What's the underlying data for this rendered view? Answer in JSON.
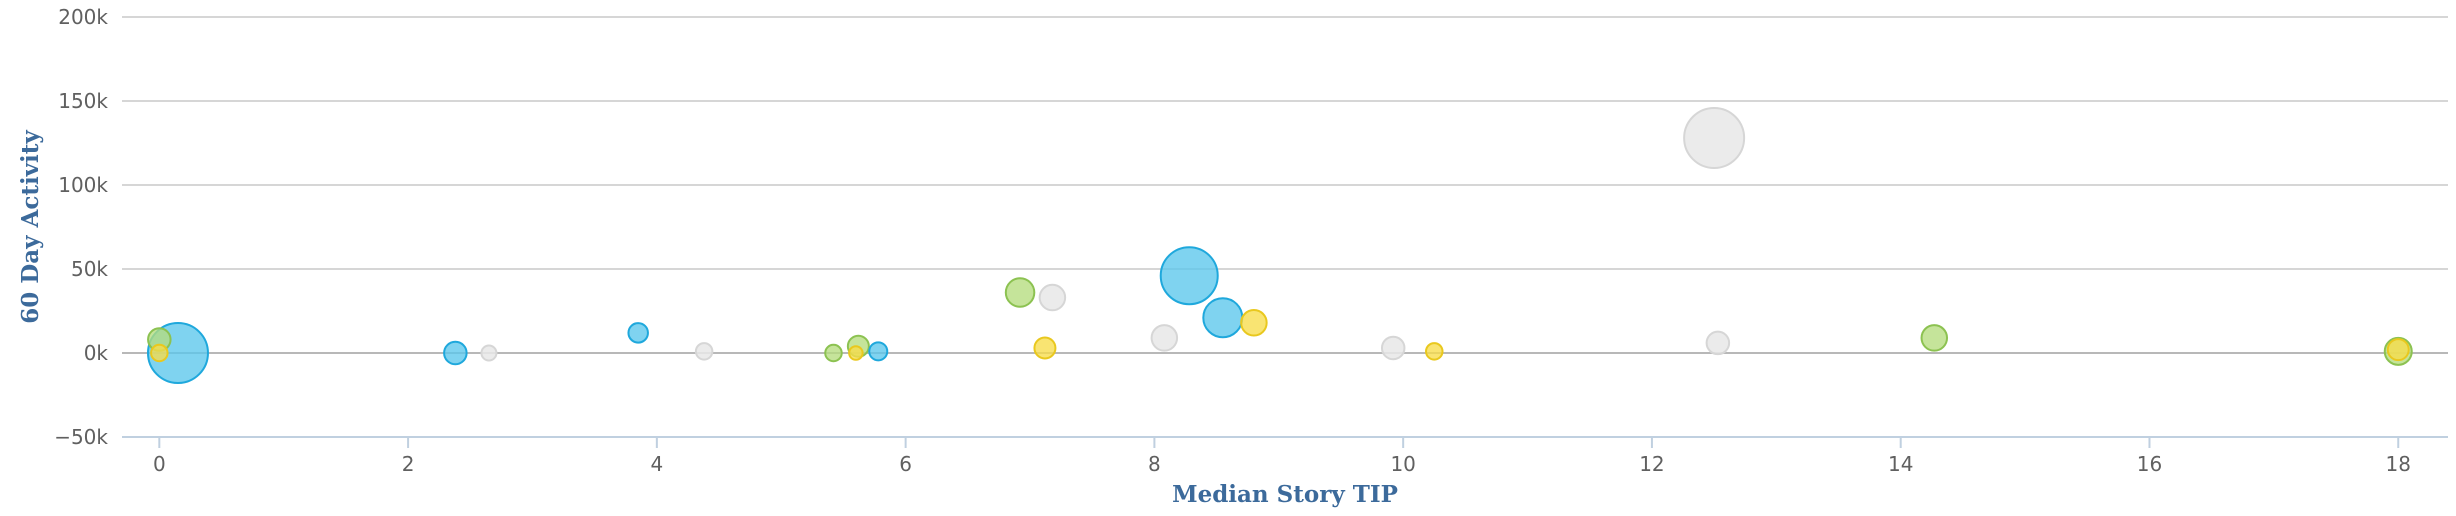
{
  "chart_data": {
    "type": "scatter",
    "subtype": "bubble",
    "title": "",
    "xlabel": "Median Story TIP",
    "ylabel": "60 Day Activity",
    "xlim": [
      -0.3,
      18.4
    ],
    "ylim": [
      -50000,
      200000
    ],
    "xticks": [
      0,
      2,
      4,
      6,
      8,
      10,
      12,
      14,
      16,
      18
    ],
    "xtick_labels": [
      "0",
      "2",
      "4",
      "6",
      "8",
      "10",
      "12",
      "14",
      "16",
      "18"
    ],
    "yticks": [
      -50000,
      0,
      50000,
      100000,
      150000,
      200000
    ],
    "ytick_labels": [
      "−50k",
      "0k",
      "50k",
      "100k",
      "150k",
      "200k"
    ],
    "grid": true,
    "legend": "none",
    "colors": {
      "blue": "#5bc6ec",
      "green": "#b5dc7e",
      "yellow": "#f7dd4a",
      "grey": "#e8e8e8"
    },
    "series": [
      {
        "color": "blue",
        "points": [
          {
            "x": 0.15,
            "y": 0,
            "size": 40
          },
          {
            "x": 2.38,
            "y": 0,
            "size": 15
          },
          {
            "x": 3.85,
            "y": 12000,
            "size": 13
          },
          {
            "x": 5.78,
            "y": 1000,
            "size": 12
          },
          {
            "x": 8.28,
            "y": 46000,
            "size": 38
          },
          {
            "x": 8.55,
            "y": 21000,
            "size": 26
          }
        ]
      },
      {
        "color": "green",
        "points": [
          {
            "x": 0.0,
            "y": 8000,
            "size": 15
          },
          {
            "x": 5.42,
            "y": 0,
            "size": 11
          },
          {
            "x": 5.62,
            "y": 4000,
            "size": 14
          },
          {
            "x": 6.92,
            "y": 36000,
            "size": 19
          },
          {
            "x": 14.27,
            "y": 9000,
            "size": 17
          },
          {
            "x": 18.0,
            "y": 1000,
            "size": 18
          }
        ]
      },
      {
        "color": "yellow",
        "points": [
          {
            "x": 0.0,
            "y": 0,
            "size": 11
          },
          {
            "x": 5.6,
            "y": 0,
            "size": 9
          },
          {
            "x": 7.12,
            "y": 3000,
            "size": 14
          },
          {
            "x": 8.8,
            "y": 18000,
            "size": 17
          },
          {
            "x": 10.25,
            "y": 1000,
            "size": 11
          },
          {
            "x": 18.0,
            "y": 2000,
            "size": 14
          }
        ]
      },
      {
        "color": "grey",
        "points": [
          {
            "x": 2.65,
            "y": 0,
            "size": 10
          },
          {
            "x": 4.38,
            "y": 1000,
            "size": 11
          },
          {
            "x": 7.18,
            "y": 33000,
            "size": 17
          },
          {
            "x": 8.08,
            "y": 9000,
            "size": 17
          },
          {
            "x": 9.92,
            "y": 3000,
            "size": 15
          },
          {
            "x": 12.5,
            "y": 128000,
            "size": 40
          },
          {
            "x": 12.53,
            "y": 6000,
            "size": 15
          }
        ]
      }
    ]
  }
}
